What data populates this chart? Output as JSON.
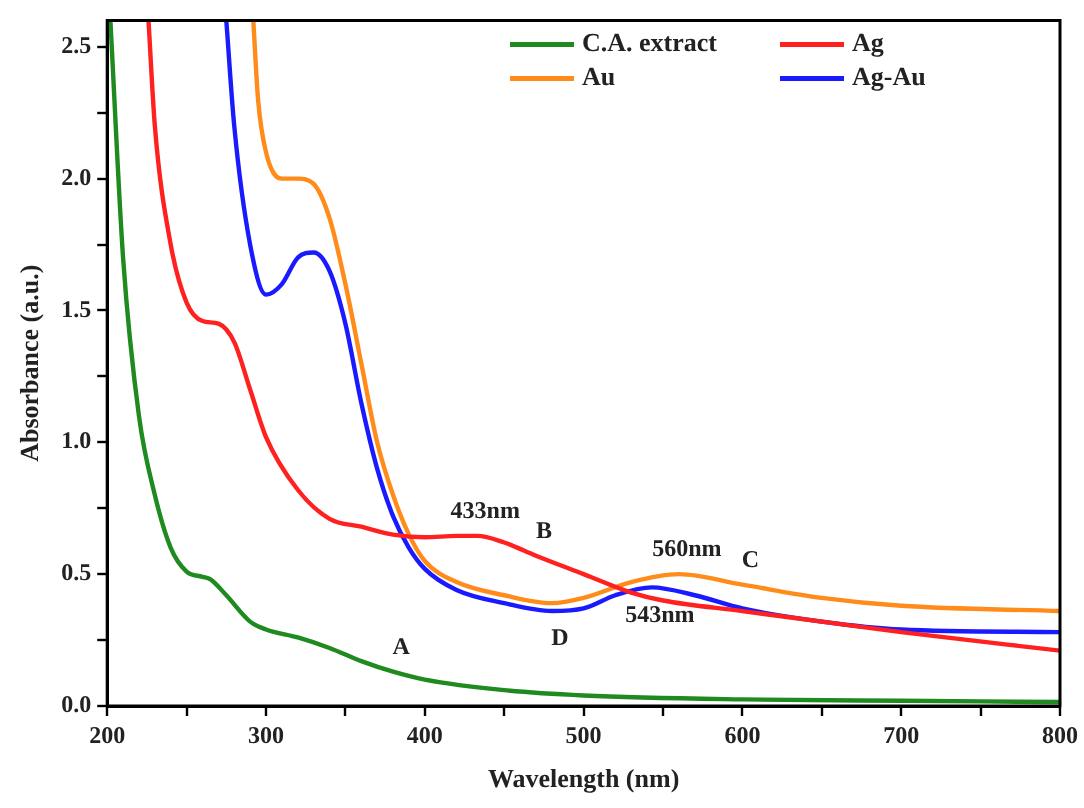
{
  "chart_data": {
    "type": "line",
    "xlabel": "Wavelength (nm)",
    "ylabel": "Absorbance (a.u.)",
    "xlim": [
      200,
      800
    ],
    "ylim": [
      0,
      2.6
    ],
    "xticks": [
      200,
      {
        "value": 250,
        "label": null
      },
      300,
      {
        "value": 350,
        "label": null
      },
      400,
      {
        "value": 450,
        "label": null
      },
      500,
      {
        "value": 550,
        "label": null
      },
      600,
      {
        "value": 650,
        "label": null
      },
      700,
      {
        "value": 750,
        "label": null
      },
      800
    ],
    "yticks": [
      {
        "value": 0,
        "label": "0.0"
      },
      {
        "value": 0.25,
        "label": null
      },
      {
        "value": 0.5,
        "label": "0.5"
      },
      {
        "value": 0.75,
        "label": null
      },
      {
        "value": 1,
        "label": "1.0"
      },
      {
        "value": 1.25,
        "label": null
      },
      {
        "value": 1.5,
        "label": "1.5"
      },
      {
        "value": 1.75,
        "label": null
      },
      {
        "value": 2,
        "label": "2.0"
      },
      {
        "value": 2.25,
        "label": null
      },
      {
        "value": 2.5,
        "label": "2.5"
      }
    ],
    "grid": false,
    "legend": "top right",
    "marker": "none",
    "line_style": "solid",
    "series": [
      {
        "name": "C.A. extract",
        "color": "#1f8a1f",
        "x": [
          202,
          210,
          220,
          230,
          240,
          250,
          260,
          265,
          275,
          290,
          300,
          320,
          340,
          360,
          380,
          400,
          450,
          500,
          600,
          700,
          800
        ],
        "values": [
          2.6,
          1.7,
          1.1,
          0.8,
          0.6,
          0.51,
          0.49,
          0.48,
          0.42,
          0.32,
          0.29,
          0.26,
          0.22,
          0.17,
          0.13,
          0.1,
          0.06,
          0.04,
          0.025,
          0.02,
          0.015
        ]
      },
      {
        "name": "Ag",
        "color": "#ff2020",
        "x": [
          226,
          230,
          240,
          250,
          260,
          270,
          280,
          290,
          300,
          320,
          340,
          360,
          380,
          400,
          420,
          433,
          450,
          470,
          500,
          530,
          550,
          600,
          650,
          700,
          800
        ],
        "values": [
          2.6,
          2.2,
          1.75,
          1.53,
          1.46,
          1.45,
          1.38,
          1.2,
          1.02,
          0.82,
          0.71,
          0.68,
          0.65,
          0.64,
          0.645,
          0.645,
          0.62,
          0.57,
          0.5,
          0.43,
          0.4,
          0.36,
          0.32,
          0.28,
          0.21
        ]
      },
      {
        "name": "Au",
        "color": "#ff8c1a",
        "x": [
          292,
          295,
          300,
          310,
          320,
          330,
          340,
          350,
          360,
          370,
          380,
          390,
          400,
          420,
          450,
          480,
          500,
          530,
          560,
          600,
          650,
          700,
          800
        ],
        "values": [
          2.6,
          2.3,
          2.1,
          2.0,
          2.0,
          1.98,
          1.85,
          1.6,
          1.3,
          1.0,
          0.8,
          0.65,
          0.55,
          0.47,
          0.42,
          0.39,
          0.41,
          0.47,
          0.5,
          0.46,
          0.41,
          0.38,
          0.36
        ]
      },
      {
        "name": "Ag-Au",
        "color": "#1a1aff",
        "x": [
          275,
          280,
          290,
          300,
          310,
          320,
          330,
          340,
          350,
          360,
          370,
          380,
          390,
          400,
          420,
          450,
          480,
          500,
          520,
          543,
          570,
          600,
          650,
          700,
          800
        ],
        "values": [
          2.6,
          2.2,
          1.75,
          1.56,
          1.6,
          1.7,
          1.72,
          1.65,
          1.45,
          1.15,
          0.9,
          0.72,
          0.6,
          0.52,
          0.44,
          0.39,
          0.36,
          0.37,
          0.42,
          0.45,
          0.42,
          0.37,
          0.32,
          0.29,
          0.28
        ]
      }
    ],
    "annotations": [
      {
        "text": "433nm",
        "x": 433,
        "y": 0.645
      },
      {
        "text": "B",
        "x": 470,
        "y": 0.57
      },
      {
        "text": "560nm",
        "x": 560,
        "y": 0.5
      },
      {
        "text": "C",
        "x": 600,
        "y": 0.46
      },
      {
        "text": "D",
        "x": 480,
        "y": 0.36
      },
      {
        "text": "543nm",
        "x": 543,
        "y": 0.45
      },
      {
        "text": "A",
        "x": 380,
        "y": 0.13
      }
    ]
  }
}
